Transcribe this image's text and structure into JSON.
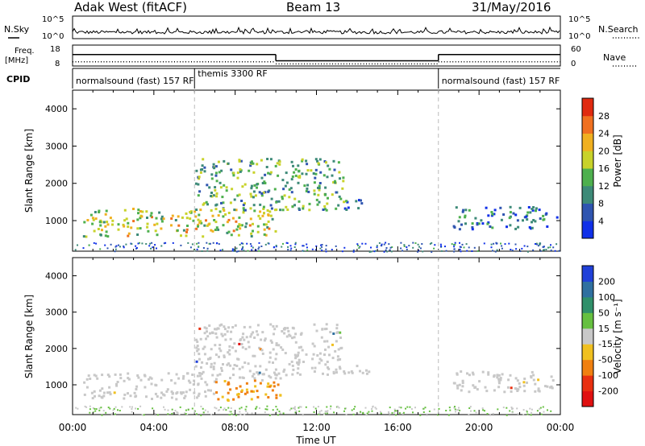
{
  "header": {
    "station": "Adak West (fitACF)",
    "beam": "Beam 13",
    "date": "31/May/2016"
  },
  "chart_data": [
    {
      "type": "line",
      "panel": "noise",
      "left_label": "N.Sky",
      "right_label": "N.Search",
      "left_ticks": [
        "10^5",
        "10^0"
      ],
      "right_ticks": [
        "10^5",
        "10^0"
      ],
      "note": "noise level trace, near-constant with spiky variation"
    },
    {
      "type": "line",
      "panel": "frequency",
      "left_label_line1": "Freq.",
      "left_label_line2": "[MHz]",
      "right_label": "Nave",
      "left_ticks": [
        18,
        8
      ],
      "right_ticks": [
        60,
        0
      ],
      "freq_steps": [
        {
          "start_h": 0,
          "end_h": 10,
          "value": 13.5
        },
        {
          "start_h": 10,
          "end_h": 18,
          "value": 10.5
        },
        {
          "start_h": 18,
          "end_h": 24,
          "value": 13.5
        }
      ],
      "nave_steps": [
        {
          "start_h": 0,
          "end_h": 10,
          "value": 12
        },
        {
          "start_h": 10,
          "end_h": 18,
          "value": 6
        },
        {
          "start_h": 18,
          "end_h": 24,
          "value": 12
        }
      ]
    },
    {
      "type": "table",
      "panel": "cpid",
      "label": "CPID",
      "segments": [
        {
          "start_h": 0,
          "end_h": 6,
          "text": "normalsound (fast) 157 RF"
        },
        {
          "start_h": 6,
          "end_h": 18,
          "text": "themis 3300 RF"
        },
        {
          "start_h": 18,
          "end_h": 24,
          "text": "normalsound (fast) 157 RF"
        }
      ]
    },
    {
      "type": "heatmap",
      "panel": "power",
      "ylabel": "Slant Range [km]",
      "xlim": [
        0,
        24
      ],
      "ylim": [
        180,
        4500
      ],
      "yticks": [
        1000,
        2000,
        3000,
        4000
      ],
      "colorbar_label": "Power [dB]",
      "colorbar_ticks": [
        4,
        8,
        12,
        16,
        20,
        24,
        28
      ],
      "colorbar_range": [
        0,
        32
      ],
      "colors": [
        "#1030e8",
        "#2f55b0",
        "#3d8a78",
        "#4eb04e",
        "#c8d22a",
        "#f0b020",
        "#f07020",
        "#e02a10"
      ],
      "scatter_regions": [
        {
          "h0": 0.5,
          "h1": 10.2,
          "r0": 600,
          "r1": 1350,
          "center": 18
        },
        {
          "h0": 6.0,
          "h1": 13.3,
          "r0": 1300,
          "r1": 2700,
          "center": 13
        },
        {
          "h0": 13.3,
          "h1": 14.6,
          "r0": 1300,
          "r1": 1600,
          "center": 6
        },
        {
          "h0": 18.7,
          "h1": 23.8,
          "r0": 800,
          "r1": 1400,
          "center": 8
        }
      ]
    },
    {
      "type": "heatmap",
      "panel": "velocity",
      "ylabel": "Slant Range [km]",
      "xlabel": "Time UT",
      "xlim": [
        0,
        24
      ],
      "ylim": [
        180,
        4500
      ],
      "yticks": [
        1000,
        2000,
        3000,
        4000
      ],
      "xticks": [
        "00:00",
        "04:00",
        "08:00",
        "12:00",
        "16:00",
        "20:00",
        "00:00"
      ],
      "colorbar_label": "Velocity [m s⁻¹]",
      "colorbar_ticks": [
        "200",
        "100",
        "50",
        "15",
        "-15",
        "-50",
        "-100",
        "-200"
      ],
      "colors": [
        "#2040d8",
        "#3070a0",
        "#30906a",
        "#66c040",
        "#c8c8c8",
        "#f0c020",
        "#f08010",
        "#e83010",
        "#e01010"
      ],
      "note": "mostly ground scatter (grey) with a patch of negative velocity near 07:00-11:00 at ~900 km"
    }
  ]
}
